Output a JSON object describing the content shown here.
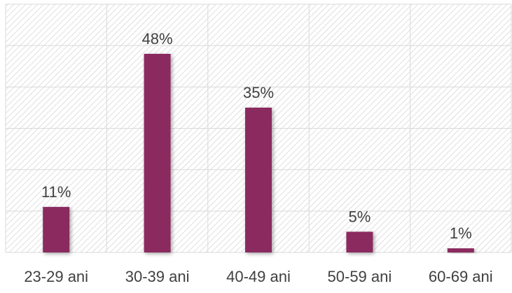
{
  "chart_data": {
    "type": "bar",
    "categories": [
      "23-29 ani",
      "30-39 ani",
      "40-49 ani",
      "50-59 ani",
      "60-69 ani"
    ],
    "values": [
      11,
      48,
      35,
      5,
      1
    ],
    "data_labels": [
      "11%",
      "48%",
      "35%",
      "5%",
      "1%"
    ],
    "title": "",
    "xlabel": "",
    "ylabel": "",
    "ylim": [
      0,
      60
    ],
    "grid": true,
    "legend": "none",
    "bar_color": "#8B2A5E",
    "plot_background": "hatched light gray"
  }
}
